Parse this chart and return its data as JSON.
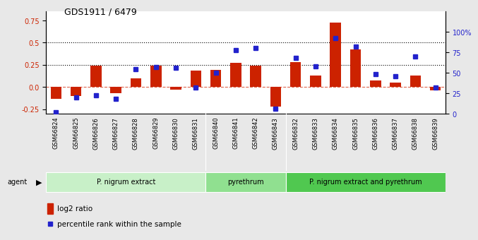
{
  "title": "GDS1911 / 6479",
  "samples": [
    "GSM66824",
    "GSM66825",
    "GSM66826",
    "GSM66827",
    "GSM66828",
    "GSM66829",
    "GSM66830",
    "GSM66831",
    "GSM66840",
    "GSM66841",
    "GSM66842",
    "GSM66843",
    "GSM66832",
    "GSM66833",
    "GSM66834",
    "GSM66835",
    "GSM66836",
    "GSM66837",
    "GSM66838",
    "GSM66839"
  ],
  "log2_ratio": [
    -0.13,
    -0.1,
    0.24,
    -0.07,
    0.1,
    0.24,
    -0.03,
    0.18,
    0.19,
    0.27,
    0.24,
    -0.22,
    0.28,
    0.13,
    0.72,
    0.42,
    0.07,
    0.05,
    0.13,
    -0.04
  ],
  "pct_rank": [
    2,
    20,
    22,
    18,
    54,
    57,
    56,
    32,
    50,
    78,
    80,
    6,
    68,
    58,
    92,
    82,
    48,
    46,
    70,
    32
  ],
  "groups": [
    {
      "label": "P. nigrum extract",
      "start": 0,
      "end": 8,
      "color": "#c8f0c8"
    },
    {
      "label": "pyrethrum",
      "start": 8,
      "end": 12,
      "color": "#90e090"
    },
    {
      "label": "P. nigrum extract and pyrethrum",
      "start": 12,
      "end": 20,
      "color": "#50c850"
    }
  ],
  "bar_color": "#cc2200",
  "dot_color": "#2222cc",
  "bar_width": 0.55,
  "ylim_left": [
    -0.3,
    0.85
  ],
  "ylim_right": [
    0,
    125
  ],
  "yticks_left": [
    -0.25,
    0.0,
    0.25,
    0.5,
    0.75
  ],
  "yticks_right": [
    0,
    25,
    50,
    75,
    100
  ],
  "ytick_labels_right": [
    "0",
    "25",
    "50",
    "75",
    "100%"
  ],
  "hlines": [
    0.25,
    0.5
  ],
  "zero_line_color": "#cc2200",
  "bg_color": "#e8e8e8",
  "plot_bg": "#ffffff",
  "agent_label": "agent",
  "legend_bar": "log2 ratio",
  "legend_dot": "percentile rank within the sample",
  "label_bg": "#c0c0c0"
}
